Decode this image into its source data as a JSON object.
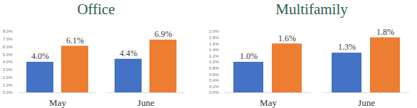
{
  "chart_data": [
    {
      "type": "bar",
      "title": "Office",
      "categories": [
        "May",
        "June"
      ],
      "series": [
        {
          "color": "#4472c4",
          "values": [
            4.0,
            4.4
          ],
          "value_labels": [
            "4.0%",
            "4.4%"
          ]
        },
        {
          "color": "#ed7d31",
          "values": [
            6.1,
            6.9
          ],
          "value_labels": [
            "6.1%",
            "6.9%"
          ]
        }
      ],
      "ylim": [
        0,
        8
      ],
      "yticks": [
        {
          "value": 0,
          "label": "0.0%"
        },
        {
          "value": 1,
          "label": "1.0%"
        },
        {
          "value": 2,
          "label": "2.0%"
        },
        {
          "value": 3,
          "label": "3.0%"
        },
        {
          "value": 4,
          "label": "4.0%"
        },
        {
          "value": 5,
          "label": "5.0%"
        },
        {
          "value": 6,
          "label": "6.0%"
        },
        {
          "value": 7,
          "label": "7.0%"
        },
        {
          "value": 8,
          "label": "8.0%"
        }
      ],
      "data_labels": true,
      "grid": false
    },
    {
      "type": "bar",
      "title": "Multifamily",
      "categories": [
        "May",
        "June"
      ],
      "series": [
        {
          "color": "#4472c4",
          "values": [
            1.0,
            1.3
          ],
          "value_labels": [
            "1.0%",
            "1.3%"
          ]
        },
        {
          "color": "#ed7d31",
          "values": [
            1.6,
            1.8
          ],
          "value_labels": [
            "1.6%",
            "1.8%"
          ]
        }
      ],
      "ylim": [
        0,
        2
      ],
      "yticks": [
        {
          "value": 0,
          "label": "0.0%"
        },
        {
          "value": 0.2,
          "label": "0.2%"
        },
        {
          "value": 0.4,
          "label": "0.4%"
        },
        {
          "value": 0.6,
          "label": "0.6%"
        },
        {
          "value": 0.8,
          "label": "0.8%"
        },
        {
          "value": 1,
          "label": "1.0%"
        },
        {
          "value": 1.2,
          "label": "1.2%"
        },
        {
          "value": 1.4,
          "label": "1.4%"
        },
        {
          "value": 1.6,
          "label": "1.6%"
        },
        {
          "value": 1.8,
          "label": "1.8%"
        },
        {
          "value": 2,
          "label": "2.0%"
        }
      ],
      "data_labels": true,
      "grid": false
    }
  ]
}
